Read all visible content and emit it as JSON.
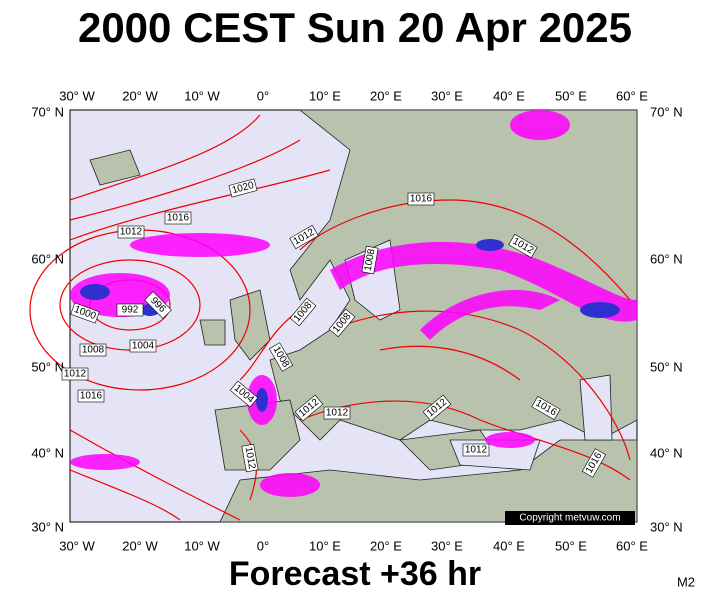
{
  "title": "2000 CEST Sun 20 Apr 2025",
  "footer": "Forecast +36 hr",
  "model": "M2",
  "copyright": "Copyright metvuw.com",
  "lon_labels": [
    "30° W",
    "20° W",
    "10° W",
    "0°",
    "10° E",
    "20° E",
    "30° E",
    "40° E",
    "50° E",
    "60° E"
  ],
  "lat_labels": [
    "70° N",
    "60° N",
    "50° N",
    "40° N",
    "30° N"
  ],
  "isobar_labels": [
    "1020",
    "1016",
    "1012",
    "1012",
    "1016",
    "1008",
    "1012",
    "996",
    "992",
    "1000",
    "1008",
    "1004",
    "1008",
    "1008",
    "1008",
    "1012",
    "1016",
    "1004",
    "1012",
    "1012",
    "1012",
    "1016",
    "1012",
    "1016",
    "1012"
  ]
}
